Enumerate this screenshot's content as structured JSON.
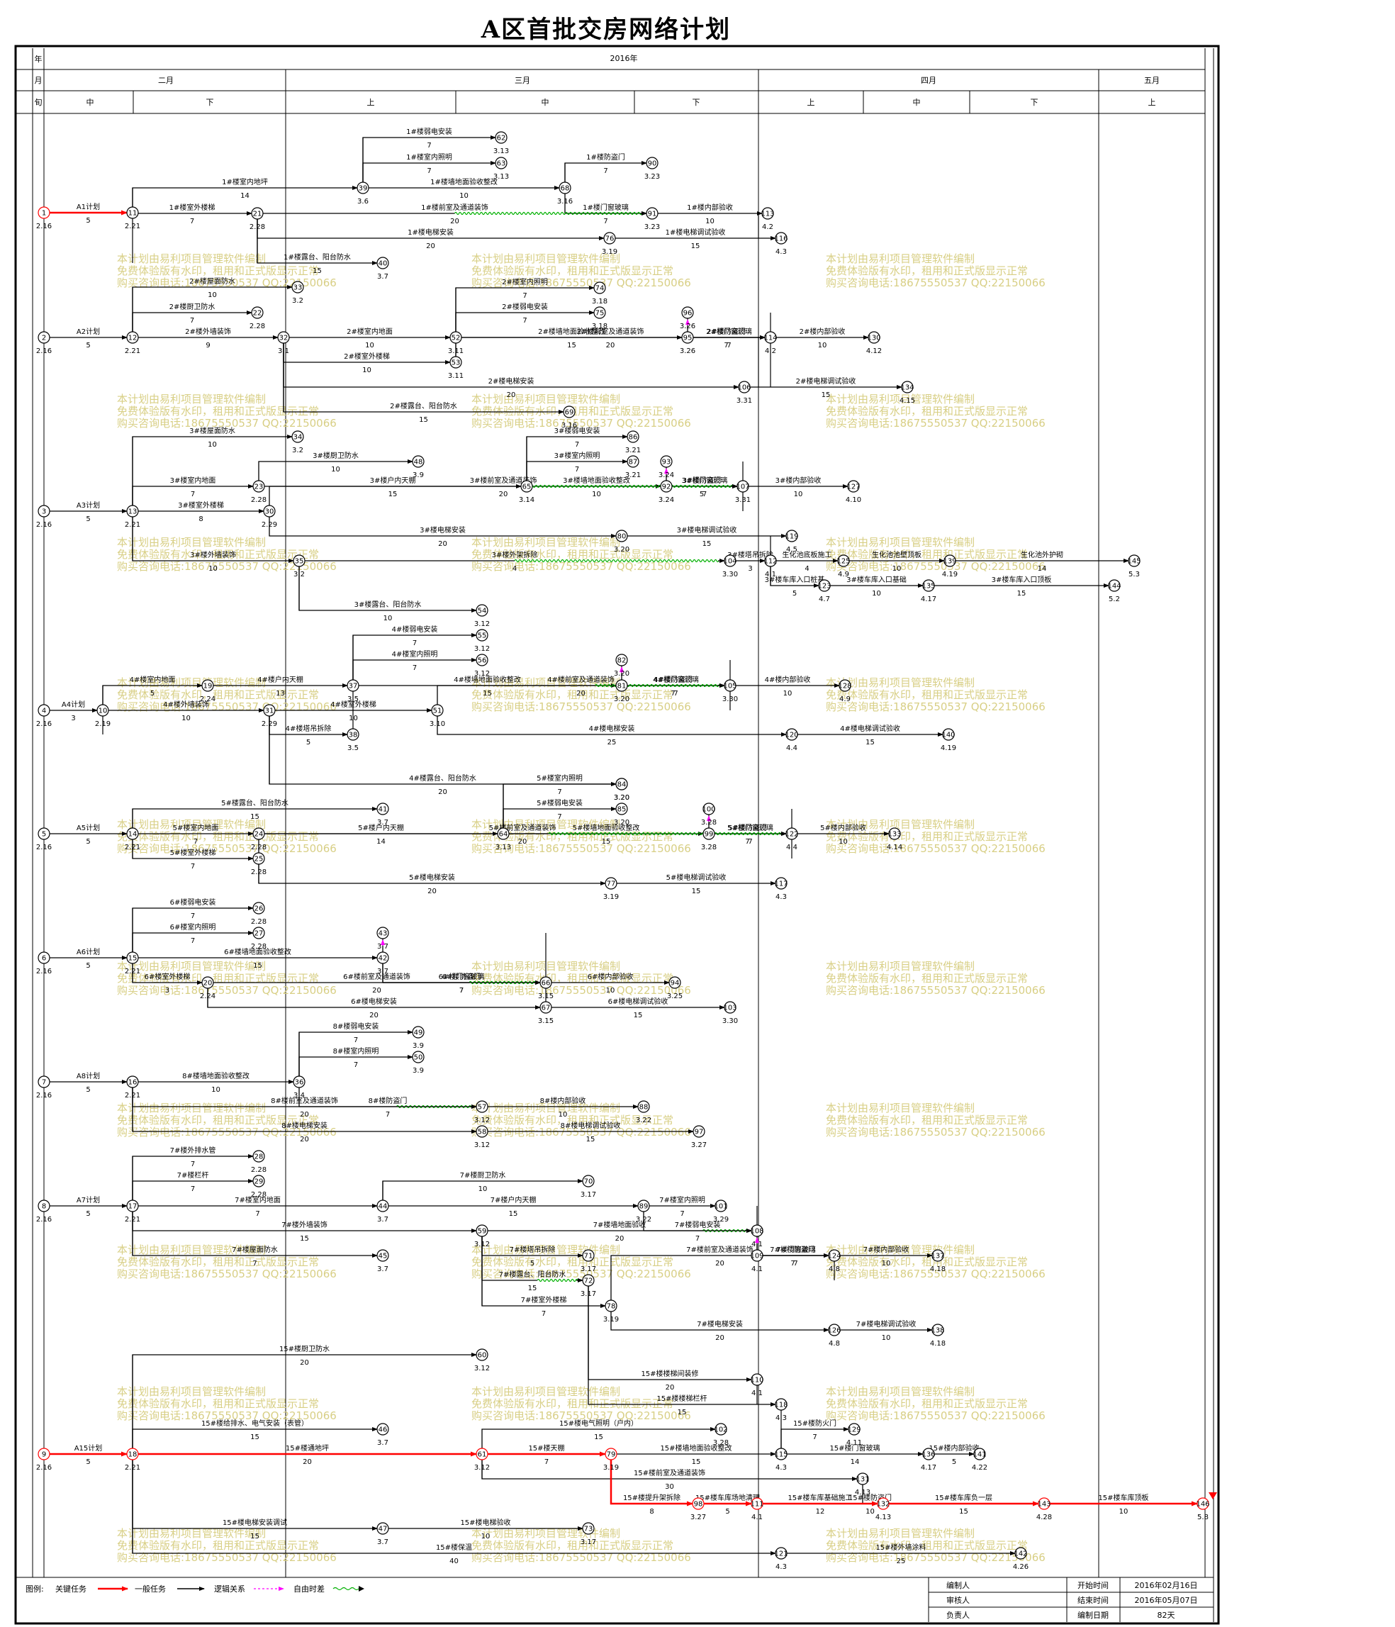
{
  "title": "A区首批交房网络计划",
  "header": {
    "row_labels": [
      "年",
      "月",
      "旬"
    ],
    "year": "2016年",
    "months": [
      "二月",
      "三月",
      "四月",
      "五月"
    ],
    "periods": [
      "中",
      "下",
      "上",
      "中",
      "下",
      "上",
      "中",
      "下",
      "上"
    ]
  },
  "watermark": [
    "本计划由易利项目管理软件编制",
    "免费体验版有水印，租用和正式版显示正常",
    "购买咨询电话:18675550537 QQ:22150066"
  ],
  "nodes": [
    {
      "id": "1",
      "date": "2.16"
    },
    {
      "id": "11",
      "date": "2.21"
    },
    {
      "id": "39",
      "date": "3.6"
    },
    {
      "id": "62",
      "date": "3.13"
    },
    {
      "id": "63",
      "date": "3.13"
    },
    {
      "id": "68",
      "date": "3.16"
    },
    {
      "id": "90",
      "date": "3.23"
    },
    {
      "id": "91",
      "date": "3.23"
    },
    {
      "id": "21",
      "date": "2.28"
    },
    {
      "id": "113",
      "date": "4.2"
    },
    {
      "id": "76",
      "date": "3.19"
    },
    {
      "id": "116",
      "date": "4.3"
    },
    {
      "id": "40",
      "date": "3.7"
    },
    {
      "id": "33",
      "date": "3.2"
    },
    {
      "id": "2",
      "date": "2.16"
    },
    {
      "id": "12",
      "date": "2.21"
    },
    {
      "id": "22",
      "date": "2.28"
    },
    {
      "id": "32",
      "date": "3.1"
    },
    {
      "id": "52",
      "date": "3.11"
    },
    {
      "id": "53",
      "date": "3.11"
    },
    {
      "id": "74",
      "date": "3.18"
    },
    {
      "id": "75",
      "date": "3.18"
    },
    {
      "id": "96",
      "date": "3.26"
    },
    {
      "id": "95",
      "date": "3.26"
    },
    {
      "id": "114",
      "date": "4.2"
    },
    {
      "id": "130",
      "date": "4.12"
    },
    {
      "id": "106",
      "date": "3.31"
    },
    {
      "id": "134",
      "date": "4.15"
    },
    {
      "id": "69",
      "date": "3.16"
    },
    {
      "id": "3",
      "date": "2.16"
    },
    {
      "id": "13",
      "date": "2.21"
    },
    {
      "id": "34",
      "date": "3.2"
    },
    {
      "id": "48",
      "date": "3.9"
    },
    {
      "id": "23",
      "date": "2.28"
    },
    {
      "id": "65",
      "date": "3.14"
    },
    {
      "id": "86",
      "date": "3.21"
    },
    {
      "id": "87",
      "date": "3.21"
    },
    {
      "id": "93",
      "date": "3.24"
    },
    {
      "id": "92",
      "date": "3.24"
    },
    {
      "id": "107",
      "date": "3.31"
    },
    {
      "id": "127",
      "date": "4.10"
    },
    {
      "id": "30",
      "date": "2.29"
    },
    {
      "id": "80",
      "date": "3.20"
    },
    {
      "id": "119",
      "date": "4.5"
    },
    {
      "id": "35",
      "date": "3.2"
    },
    {
      "id": "104",
      "date": "3.30"
    },
    {
      "id": "112",
      "date": "4.1"
    },
    {
      "id": "125",
      "date": "4.9"
    },
    {
      "id": "139",
      "date": "4.19"
    },
    {
      "id": "145",
      "date": "5.3"
    },
    {
      "id": "123",
      "date": "4.7"
    },
    {
      "id": "135",
      "date": "4.17"
    },
    {
      "id": "144",
      "date": "5.2"
    },
    {
      "id": "54",
      "date": "3.12"
    },
    {
      "id": "4",
      "date": "2.16"
    },
    {
      "id": "10",
      "date": "2.19"
    },
    {
      "id": "19",
      "date": "2.24"
    },
    {
      "id": "31",
      "date": "2.29"
    },
    {
      "id": "37",
      "date": "3.5"
    },
    {
      "id": "55",
      "date": "3.12"
    },
    {
      "id": "56",
      "date": "3.12"
    },
    {
      "id": "82",
      "date": "3.20"
    },
    {
      "id": "81",
      "date": "3.20"
    },
    {
      "id": "105",
      "date": "3.30"
    },
    {
      "id": "128",
      "date": "4.9"
    },
    {
      "id": "51",
      "date": "3.10"
    },
    {
      "id": "38",
      "date": "3.5"
    },
    {
      "id": "120",
      "date": "4.4"
    },
    {
      "id": "140",
      "date": "4.19"
    },
    {
      "id": "83",
      "date": "3.20"
    },
    {
      "id": "5",
      "date": "2.16"
    },
    {
      "id": "14",
      "date": "2.21"
    },
    {
      "id": "41",
      "date": "3.7"
    },
    {
      "id": "84",
      "date": "3.20"
    },
    {
      "id": "85",
      "date": "3.20"
    },
    {
      "id": "100",
      "date": "3.28"
    },
    {
      "id": "99",
      "date": "3.28"
    },
    {
      "id": "24",
      "date": "2.28"
    },
    {
      "id": "64",
      "date": "3.13"
    },
    {
      "id": "122",
      "date": "4.4"
    },
    {
      "id": "133",
      "date": "4.14"
    },
    {
      "id": "25",
      "date": "2.28"
    },
    {
      "id": "77",
      "date": "3.19"
    },
    {
      "id": "117",
      "date": "4.3"
    },
    {
      "id": "6",
      "date": "2.16"
    },
    {
      "id": "15",
      "date": "2.21"
    },
    {
      "id": "26",
      "date": "2.28"
    },
    {
      "id": "27",
      "date": "2.28"
    },
    {
      "id": "43",
      "date": "3.7"
    },
    {
      "id": "42",
      "date": "3.7"
    },
    {
      "id": "20",
      "date": "2.24"
    },
    {
      "id": "66",
      "date": "3.15"
    },
    {
      "id": "94",
      "date": "3.25"
    },
    {
      "id": "67",
      "date": "3.15"
    },
    {
      "id": "103",
      "date": "3.30"
    },
    {
      "id": "7",
      "date": "2.16"
    },
    {
      "id": "16",
      "date": "2.21"
    },
    {
      "id": "36",
      "date": "3.4"
    },
    {
      "id": "49",
      "date": "3.9"
    },
    {
      "id": "50",
      "date": "3.9"
    },
    {
      "id": "57",
      "date": "3.12"
    },
    {
      "id": "58",
      "date": "3.12"
    },
    {
      "id": "88",
      "date": "3.22"
    },
    {
      "id": "97",
      "date": "3.27"
    },
    {
      "id": "8",
      "date": "2.16"
    },
    {
      "id": "17",
      "date": "2.21"
    },
    {
      "id": "28",
      "date": "2.28"
    },
    {
      "id": "29",
      "date": "2.28"
    },
    {
      "id": "44",
      "date": "3.7"
    },
    {
      "id": "70",
      "date": "3.17"
    },
    {
      "id": "89",
      "date": "3.22"
    },
    {
      "id": "101",
      "date": "3.29"
    },
    {
      "id": "59",
      "date": "3.12"
    },
    {
      "id": "108",
      "date": "4.1"
    },
    {
      "id": "109",
      "date": "4.1"
    },
    {
      "id": "124",
      "date": "4.8"
    },
    {
      "id": "137",
      "date": "4.18"
    },
    {
      "id": "45",
      "date": "3.7"
    },
    {
      "id": "71",
      "date": "3.17"
    },
    {
      "id": "72",
      "date": "3.17"
    },
    {
      "id": "78",
      "date": "3.19"
    },
    {
      "id": "126",
      "date": "4.8"
    },
    {
      "id": "138",
      "date": "4.18"
    },
    {
      "id": "60",
      "date": "3.12"
    },
    {
      "id": "9",
      "date": "2.16"
    },
    {
      "id": "18",
      "date": "2.21"
    },
    {
      "id": "46",
      "date": "3.7"
    },
    {
      "id": "61",
      "date": "3.12"
    },
    {
      "id": "73",
      "date": "3.17"
    },
    {
      "id": "79",
      "date": "3.19"
    },
    {
      "id": "98",
      "date": "3.27"
    },
    {
      "id": "102",
      "date": "3.28"
    },
    {
      "id": "110",
      "date": "4.1"
    },
    {
      "id": "111",
      "date": "4.1"
    },
    {
      "id": "115",
      "date": "4.3"
    },
    {
      "id": "118",
      "date": "4.3"
    },
    {
      "id": "121",
      "date": "4.3"
    },
    {
      "id": "129",
      "date": "4.11"
    },
    {
      "id": "131",
      "date": "4.13"
    },
    {
      "id": "132",
      "date": "4.13"
    },
    {
      "id": "136",
      "date": "4.17"
    },
    {
      "id": "141",
      "date": "4.22"
    },
    {
      "id": "142",
      "date": "4.26"
    },
    {
      "id": "143",
      "date": "4.28"
    },
    {
      "id": "146",
      "date": "5.8"
    },
    {
      "id": "47",
      "date": "3.7"
    }
  ],
  "activities": [
    {
      "name": "A1计划",
      "dur": "5"
    },
    {
      "name": "1#楼室内地坪",
      "dur": "14"
    },
    {
      "name": "1#楼室外楼梯",
      "dur": "7"
    },
    {
      "name": "1#楼弱电安装",
      "dur": "7"
    },
    {
      "name": "1#楼室内照明",
      "dur": "7"
    },
    {
      "name": "1#楼墙地面验收整改",
      "dur": "10"
    },
    {
      "name": "1#楼防盗门",
      "dur": "7"
    },
    {
      "name": "1#楼门窗玻璃",
      "dur": "7"
    },
    {
      "name": "1#楼前室及通道装饰",
      "dur": "20"
    },
    {
      "name": "1#楼内部验收",
      "dur": "10"
    },
    {
      "name": "1#楼电梯安装",
      "dur": "20"
    },
    {
      "name": "1#楼电梯调试验收",
      "dur": "15"
    },
    {
      "name": "1#楼露台、阳台防水",
      "dur": "15"
    },
    {
      "name": "A2计划",
      "dur": "5"
    },
    {
      "name": "2#楼屋面防水",
      "dur": "10"
    },
    {
      "name": "2#楼厨卫防水",
      "dur": "7"
    },
    {
      "name": "2#楼外墙装饰",
      "dur": "9"
    },
    {
      "name": "2#楼室内地面",
      "dur": "10"
    },
    {
      "name": "2#楼室外楼梯",
      "dur": "10"
    },
    {
      "name": "2#楼室内照明",
      "dur": "7"
    },
    {
      "name": "2#楼弱电安装",
      "dur": "7"
    },
    {
      "name": "2#楼墙地面验收整改",
      "dur": "15"
    },
    {
      "name": "2#楼前室及通道装饰",
      "dur": "20"
    },
    {
      "name": "2#楼防盗门",
      "dur": "7"
    },
    {
      "name": "2#楼门窗玻璃",
      "dur": "7"
    },
    {
      "name": "2#楼内部验收",
      "dur": "10"
    },
    {
      "name": "2#楼电梯安装",
      "dur": "20"
    },
    {
      "name": "2#楼电梯调试验收",
      "dur": "15"
    },
    {
      "name": "2#楼露台、阳台防水",
      "dur": "15"
    },
    {
      "name": "A3计划",
      "dur": "5"
    },
    {
      "name": "3#楼屋面防水",
      "dur": "10"
    },
    {
      "name": "3#楼厨卫防水",
      "dur": "10"
    },
    {
      "name": "3#楼室内地面",
      "dur": "7"
    },
    {
      "name": "3#楼户内天棚",
      "dur": "15"
    },
    {
      "name": "3#楼室外楼梯",
      "dur": "8"
    },
    {
      "name": "3#楼弱电安装",
      "dur": "7"
    },
    {
      "name": "3#楼室内照明",
      "dur": "7"
    },
    {
      "name": "3#楼墙地面验收整改",
      "dur": "10"
    },
    {
      "name": "3#楼防盗门",
      "dur": "5"
    },
    {
      "name": "3#楼门窗玻璃",
      "dur": "7"
    },
    {
      "name": "3#楼内部验收",
      "dur": "10"
    },
    {
      "name": "3#楼前室及通道装饰",
      "dur": "20"
    },
    {
      "name": "3#楼电梯安装",
      "dur": "20"
    },
    {
      "name": "3#楼电梯调试验收",
      "dur": "15"
    },
    {
      "name": "3#楼外墙装饰",
      "dur": "10"
    },
    {
      "name": "3#楼外架拆除",
      "dur": "4"
    },
    {
      "name": "3#楼塔吊拆除",
      "dur": "3"
    },
    {
      "name": "生化池底板施工",
      "dur": "4"
    },
    {
      "name": "生化池池壁顶板",
      "dur": "10"
    },
    {
      "name": "生化池外护砌",
      "dur": "14"
    },
    {
      "name": "3#楼车库入口桩基",
      "dur": "5"
    },
    {
      "name": "3#楼车库入口基础",
      "dur": "10"
    },
    {
      "name": "3#楼车库入口顶板",
      "dur": "15"
    },
    {
      "name": "3#楼露台、阳台防水",
      "dur": "10"
    },
    {
      "name": "A4计划",
      "dur": "3"
    },
    {
      "name": "4#楼室内地面",
      "dur": "5"
    },
    {
      "name": "4#楼户内天棚",
      "dur": "13"
    },
    {
      "name": "4#楼外墙装饰",
      "dur": "10"
    },
    {
      "name": "4#楼室外楼梯",
      "dur": "10"
    },
    {
      "name": "4#楼弱电安装",
      "dur": "7"
    },
    {
      "name": "4#楼室内照明",
      "dur": "7"
    },
    {
      "name": "4#楼墙地面验收整改",
      "dur": "15"
    },
    {
      "name": "4#楼防盗门",
      "dur": "7"
    },
    {
      "name": "4#楼门窗玻璃",
      "dur": "7"
    },
    {
      "name": "4#楼内部验收",
      "dur": "10"
    },
    {
      "name": "4#楼前室及通道装饰",
      "dur": "20"
    },
    {
      "name": "4#楼塔吊拆除",
      "dur": "5"
    },
    {
      "name": "4#楼电梯安装",
      "dur": "25"
    },
    {
      "name": "4#楼电梯调试验收",
      "dur": "15"
    },
    {
      "name": "4#楼露台、阳台防水",
      "dur": "20"
    },
    {
      "name": "A5计划",
      "dur": "5"
    },
    {
      "name": "5#楼露台、阳台防水",
      "dur": "15"
    },
    {
      "name": "5#楼室内地面",
      "dur": "7"
    },
    {
      "name": "5#楼户内天棚",
      "dur": "14"
    },
    {
      "name": "5#楼室外楼梯",
      "dur": "7"
    },
    {
      "name": "5#楼室内照明",
      "dur": "7"
    },
    {
      "name": "5#楼弱电安装",
      "dur": "7"
    },
    {
      "name": "5#楼墙地面验收整改",
      "dur": "15"
    },
    {
      "name": "5#楼防盗门",
      "dur": "7"
    },
    {
      "name": "5#楼门窗玻璃",
      "dur": "7"
    },
    {
      "name": "5#楼内部验收",
      "dur": "10"
    },
    {
      "name": "5#楼前室及通道装饰",
      "dur": "20"
    },
    {
      "name": "5#楼电梯安装",
      "dur": "20"
    },
    {
      "name": "5#楼电梯调试验收",
      "dur": "15"
    },
    {
      "name": "A6计划",
      "dur": "5"
    },
    {
      "name": "6#楼弱电安装",
      "dur": "7"
    },
    {
      "name": "6#楼室内照明",
      "dur": "7"
    },
    {
      "name": "6#楼墙地面验收整改",
      "dur": "15"
    },
    {
      "name": "6#楼防盗门",
      "dur": "7"
    },
    {
      "name": "6#楼门窗玻璃",
      "dur": "7"
    },
    {
      "name": "6#楼室外楼梯",
      "dur": "3"
    },
    {
      "name": "6#楼前室及通道装饰",
      "dur": "20"
    },
    {
      "name": "6#楼内部验收",
      "dur": "10"
    },
    {
      "name": "6#楼电梯安装",
      "dur": "20"
    },
    {
      "name": "6#楼电梯调试验收",
      "dur": "15"
    },
    {
      "name": "A8计划",
      "dur": "5"
    },
    {
      "name": "8#楼墙地面验收整改",
      "dur": "10"
    },
    {
      "name": "8#楼弱电安装",
      "dur": "7"
    },
    {
      "name": "8#楼室内照明",
      "dur": "7"
    },
    {
      "name": "8#楼防盗门",
      "dur": "7"
    },
    {
      "name": "8#楼前室及通道装饰",
      "dur": "20"
    },
    {
      "name": "8#楼电梯安装",
      "dur": "20"
    },
    {
      "name": "8#楼内部验收",
      "dur": "10"
    },
    {
      "name": "8#楼电梯调试验收",
      "dur": "15"
    },
    {
      "name": "A7计划",
      "dur": "5"
    },
    {
      "name": "7#楼外排水管",
      "dur": "7"
    },
    {
      "name": "7#楼栏杆",
      "dur": "7"
    },
    {
      "name": "7#楼室内地面",
      "dur": "7"
    },
    {
      "name": "7#楼厨卫防水",
      "dur": "10"
    },
    {
      "name": "7#楼户内天棚",
      "dur": "15"
    },
    {
      "name": "7#楼弱电安装",
      "dur": "7"
    },
    {
      "name": "7#楼室内照明",
      "dur": "7"
    },
    {
      "name": "7#楼外墙装饰",
      "dur": "15"
    },
    {
      "name": "7#楼墙地面验收",
      "dur": "20"
    },
    {
      "name": "7#楼门窗玻璃",
      "dur": "7"
    },
    {
      "name": "7#楼防盗门",
      "dur": "7"
    },
    {
      "name": "7#楼内部验收",
      "dur": "10"
    },
    {
      "name": "7#楼屋面防水",
      "dur": "7"
    },
    {
      "name": "7#楼塔吊拆除",
      "dur": "5"
    },
    {
      "name": "7#楼露台、阳台防水",
      "dur": "15"
    },
    {
      "name": "7#楼室外楼梯",
      "dur": "7"
    },
    {
      "name": "7#楼前室及通道装饰",
      "dur": "20"
    },
    {
      "name": "7#楼电梯安装",
      "dur": "20"
    },
    {
      "name": "7#楼电梯调试验收",
      "dur": "10"
    },
    {
      "name": "A15计划",
      "dur": "5"
    },
    {
      "name": "15#楼厨卫防水",
      "dur": "20"
    },
    {
      "name": "15#楼楼梯间装修",
      "dur": "20"
    },
    {
      "name": "15#楼楼梯栏杆",
      "dur": "15"
    },
    {
      "name": "15#楼给排水、电气安装（表管）",
      "dur": "15"
    },
    {
      "name": "15#楼电气照明（户内）",
      "dur": "15"
    },
    {
      "name": "15#楼通地坪",
      "dur": "20"
    },
    {
      "name": "15#楼天棚",
      "dur": "7"
    },
    {
      "name": "15#楼墙地面验收整改",
      "dur": "15"
    },
    {
      "name": "15#楼防火门",
      "dur": "7"
    },
    {
      "name": "15#楼门窗玻璃",
      "dur": "14"
    },
    {
      "name": "15#楼内部验收",
      "dur": "5"
    },
    {
      "name": "15#楼前室及通道装饰",
      "dur": "30"
    },
    {
      "name": "15#楼防盗门",
      "dur": "10"
    },
    {
      "name": "15#楼提升架拆除",
      "dur": "8"
    },
    {
      "name": "15#楼车库场地清理",
      "dur": "5"
    },
    {
      "name": "15#楼车库基础施工",
      "dur": "12"
    },
    {
      "name": "15#楼车库负一层",
      "dur": "15"
    },
    {
      "name": "15#楼车库顶板",
      "dur": "10"
    },
    {
      "name": "15#楼电梯安装调试",
      "dur": "15"
    },
    {
      "name": "15#楼电梯验收",
      "dur": "10"
    },
    {
      "name": "15#楼保温",
      "dur": "40"
    },
    {
      "name": "15#楼外墙涂料",
      "dur": "25"
    }
  ],
  "legend": {
    "prefix": "图例:",
    "critical": "关键任务",
    "normal": "一般任务",
    "logic": "逻辑关系",
    "float": "自由时差",
    "colors": {
      "critical": "#ff0000",
      "normal": "#000000",
      "logic": "#ff00ff",
      "float": "#00b000"
    }
  },
  "footer": {
    "labels": [
      "编制人",
      "审核人",
      "负责人"
    ],
    "values": [
      "",
      "",
      ""
    ],
    "time_labels": [
      "开始时间",
      "结束时间",
      "编制日期"
    ],
    "time_values": [
      "2016年02月16日",
      "2016年05月07日",
      "82天"
    ]
  }
}
